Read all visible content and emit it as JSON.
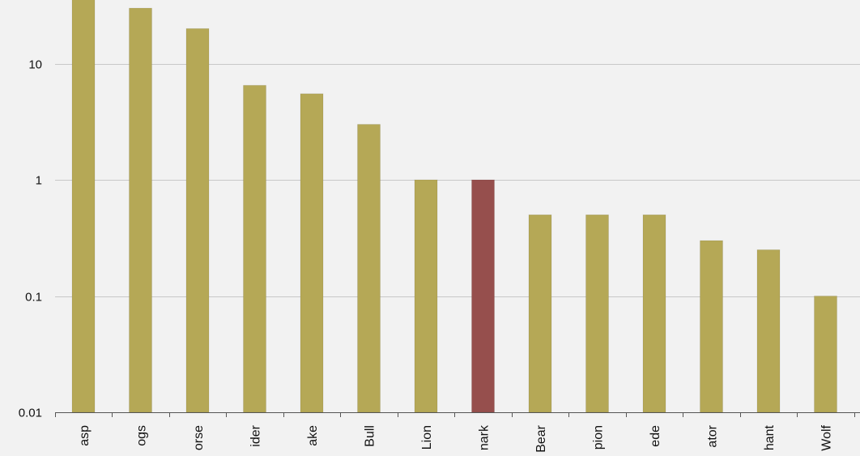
{
  "chart_data": {
    "type": "bar",
    "yscale": "log",
    "ylim": [
      0.01,
      40
    ],
    "yticks": [
      {
        "value": 10,
        "label": "10"
      },
      {
        "value": 1,
        "label": "1"
      },
      {
        "value": 0.1,
        "label": "0.1"
      },
      {
        "value": 0.01,
        "label": "0.01"
      }
    ],
    "grid": true,
    "categories": [
      "asp",
      "ogs",
      "orse",
      "ider",
      "ake",
      "Bull",
      "Lion",
      "nark",
      "Bear",
      "pion",
      "ede",
      "ator",
      "hant",
      "Wolf"
    ],
    "values": [
      40,
      30,
      20,
      6.5,
      5.5,
      3,
      1,
      1,
      0.5,
      0.5,
      0.5,
      0.3,
      0.25,
      0.1
    ],
    "colors": {
      "default": "#b5a856",
      "highlight": "#964f4d",
      "grid": "#c8c8c8",
      "axis": "#555555",
      "background": "#f2f2f2"
    },
    "highlight_index": 7
  }
}
